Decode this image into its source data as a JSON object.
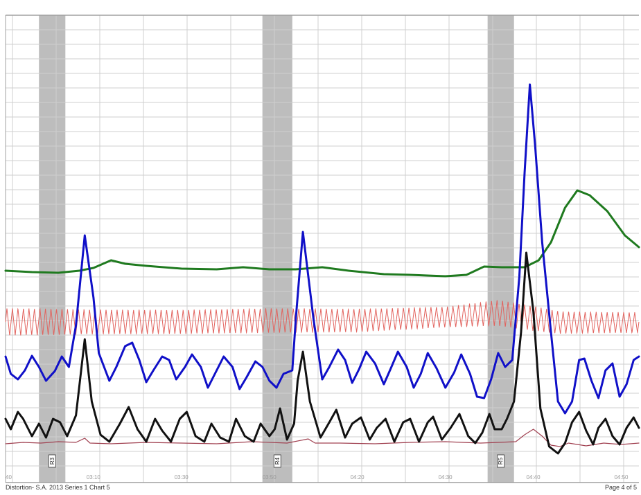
{
  "footer": {
    "left": "Distortion- S.A. 2013 Series 1 Chart 5",
    "right": "Page 4 of 5"
  },
  "chart_data": {
    "type": "line",
    "title": "",
    "xlabel": "",
    "ylabel": "",
    "x_unit": "seconds",
    "xlim": [
      3600,
      3960
    ],
    "grid": true,
    "tick_labels": [
      {
        "x": 3600,
        "label": "40"
      },
      {
        "x": 3646,
        "label": "03:10"
      },
      {
        "x": 3696,
        "label": "03:30"
      },
      {
        "x": 3746,
        "label": "03:50"
      },
      {
        "x": 3796,
        "label": "04:20"
      },
      {
        "x": 3846,
        "label": "04:30"
      },
      {
        "x": 3896,
        "label": "04:40"
      },
      {
        "x": 3946,
        "label": "04:50"
      }
    ],
    "question_bands": [
      {
        "start": 3619,
        "end": 3634,
        "label": "R3"
      },
      {
        "start": 3746,
        "end": 3763,
        "label": "R4"
      },
      {
        "start": 3874,
        "end": 3889,
        "label": "R5"
      }
    ],
    "colors": {
      "band": "#bdbdbd",
      "grid": "#cfcfcf",
      "frame": "#a0a0a0",
      "electrodermal": "#1f7a1f",
      "cardio": "#e2635e",
      "upper_respiration": "#1010c8",
      "lower_respiration": "#111111",
      "activity": "#a04050"
    },
    "series": [
      {
        "key": "electrodermal",
        "points": [
          [
            3600,
            391
          ],
          [
            3615,
            393
          ],
          [
            3630,
            394
          ],
          [
            3642,
            391
          ],
          [
            3650,
            387
          ],
          [
            3660,
            376
          ],
          [
            3668,
            381
          ],
          [
            3680,
            384
          ],
          [
            3700,
            388
          ],
          [
            3720,
            389
          ],
          [
            3735,
            386
          ],
          [
            3750,
            389
          ],
          [
            3765,
            389
          ],
          [
            3780,
            386
          ],
          [
            3795,
            391
          ],
          [
            3815,
            396
          ],
          [
            3830,
            397
          ],
          [
            3850,
            399
          ],
          [
            3862,
            397
          ],
          [
            3872,
            385
          ],
          [
            3882,
            386
          ],
          [
            3895,
            386
          ],
          [
            3903,
            376
          ],
          [
            3910,
            350
          ],
          [
            3918,
            300
          ],
          [
            3925,
            275
          ],
          [
            3932,
            282
          ],
          [
            3942,
            305
          ],
          [
            3952,
            340
          ],
          [
            3960,
            357
          ]
        ]
      },
      {
        "key": "cardio",
        "center": [
          [
            3600,
            465
          ],
          [
            3640,
            465
          ],
          [
            3700,
            465
          ],
          [
            3750,
            463
          ],
          [
            3800,
            463
          ],
          [
            3850,
            458
          ],
          [
            3880,
            452
          ],
          [
            3895,
            458
          ],
          [
            3915,
            466
          ],
          [
            3960,
            466
          ]
        ],
        "amp": [
          [
            3600,
            40
          ],
          [
            3630,
            38
          ],
          [
            3650,
            36
          ],
          [
            3700,
            35
          ],
          [
            3750,
            36
          ],
          [
            3800,
            34
          ],
          [
            3850,
            30
          ],
          [
            3880,
            38
          ],
          [
            3900,
            36
          ],
          [
            3920,
            32
          ],
          [
            3960,
            30
          ]
        ],
        "period": 3.13
      },
      {
        "key": "upper_respiration",
        "points": [
          [
            3600,
            515
          ],
          [
            3603,
            540
          ],
          [
            3607,
            548
          ],
          [
            3611,
            535
          ],
          [
            3615,
            514
          ],
          [
            3619,
            530
          ],
          [
            3623,
            550
          ],
          [
            3628,
            536
          ],
          [
            3632,
            515
          ],
          [
            3636,
            530
          ],
          [
            3640,
            470
          ],
          [
            3645,
            340
          ],
          [
            3650,
            430
          ],
          [
            3653,
            510
          ],
          [
            3659,
            550
          ],
          [
            3663,
            530
          ],
          [
            3668,
            500
          ],
          [
            3672,
            495
          ],
          [
            3676,
            520
          ],
          [
            3680,
            552
          ],
          [
            3684,
            535
          ],
          [
            3689,
            515
          ],
          [
            3693,
            520
          ],
          [
            3697,
            548
          ],
          [
            3702,
            530
          ],
          [
            3706,
            512
          ],
          [
            3711,
            530
          ],
          [
            3715,
            560
          ],
          [
            3719,
            540
          ],
          [
            3724,
            515
          ],
          [
            3729,
            530
          ],
          [
            3733,
            562
          ],
          [
            3737,
            545
          ],
          [
            3742,
            522
          ],
          [
            3746,
            530
          ],
          [
            3750,
            550
          ],
          [
            3754,
            560
          ],
          [
            3758,
            540
          ],
          [
            3763,
            535
          ],
          [
            3765,
            460
          ],
          [
            3769,
            335
          ],
          [
            3775,
            460
          ],
          [
            3780,
            548
          ],
          [
            3784,
            530
          ],
          [
            3789,
            505
          ],
          [
            3793,
            520
          ],
          [
            3797,
            553
          ],
          [
            3801,
            533
          ],
          [
            3805,
            508
          ],
          [
            3810,
            525
          ],
          [
            3815,
            555
          ],
          [
            3819,
            532
          ],
          [
            3823,
            508
          ],
          [
            3828,
            530
          ],
          [
            3832,
            560
          ],
          [
            3836,
            540
          ],
          [
            3840,
            510
          ],
          [
            3845,
            532
          ],
          [
            3850,
            560
          ],
          [
            3855,
            538
          ],
          [
            3859,
            512
          ],
          [
            3864,
            540
          ],
          [
            3868,
            573
          ],
          [
            3872,
            575
          ],
          [
            3876,
            548
          ],
          [
            3880,
            510
          ],
          [
            3884,
            530
          ],
          [
            3888,
            520
          ],
          [
            3892,
            400
          ],
          [
            3895,
            250
          ],
          [
            3898,
            122
          ],
          [
            3901,
            210
          ],
          [
            3905,
            350
          ],
          [
            3910,
            480
          ],
          [
            3914,
            580
          ],
          [
            3918,
            597
          ],
          [
            3922,
            580
          ],
          [
            3926,
            520
          ],
          [
            3929,
            518
          ],
          [
            3933,
            550
          ],
          [
            3937,
            575
          ],
          [
            3941,
            535
          ],
          [
            3945,
            525
          ],
          [
            3949,
            573
          ],
          [
            3953,
            555
          ],
          [
            3957,
            520
          ],
          [
            3960,
            515
          ]
        ]
      },
      {
        "key": "lower_respiration",
        "points": [
          [
            3600,
            605
          ],
          [
            3603,
            620
          ],
          [
            3607,
            595
          ],
          [
            3610,
            605
          ],
          [
            3615,
            630
          ],
          [
            3619,
            612
          ],
          [
            3623,
            632
          ],
          [
            3627,
            605
          ],
          [
            3631,
            610
          ],
          [
            3635,
            630
          ],
          [
            3640,
            600
          ],
          [
            3645,
            490
          ],
          [
            3649,
            580
          ],
          [
            3654,
            628
          ],
          [
            3659,
            638
          ],
          [
            3665,
            612
          ],
          [
            3670,
            588
          ],
          [
            3675,
            620
          ],
          [
            3680,
            638
          ],
          [
            3685,
            605
          ],
          [
            3689,
            622
          ],
          [
            3694,
            638
          ],
          [
            3699,
            605
          ],
          [
            3703,
            595
          ],
          [
            3708,
            630
          ],
          [
            3713,
            638
          ],
          [
            3717,
            612
          ],
          [
            3722,
            632
          ],
          [
            3727,
            638
          ],
          [
            3731,
            605
          ],
          [
            3736,
            630
          ],
          [
            3741,
            638
          ],
          [
            3745,
            612
          ],
          [
            3750,
            630
          ],
          [
            3753,
            620
          ],
          [
            3756,
            590
          ],
          [
            3760,
            635
          ],
          [
            3764,
            612
          ],
          [
            3766,
            550
          ],
          [
            3769,
            508
          ],
          [
            3773,
            580
          ],
          [
            3779,
            632
          ],
          [
            3784,
            610
          ],
          [
            3788,
            592
          ],
          [
            3793,
            632
          ],
          [
            3797,
            612
          ],
          [
            3802,
            603
          ],
          [
            3807,
            635
          ],
          [
            3811,
            618
          ],
          [
            3816,
            605
          ],
          [
            3821,
            638
          ],
          [
            3826,
            610
          ],
          [
            3830,
            605
          ],
          [
            3835,
            638
          ],
          [
            3840,
            610
          ],
          [
            3843,
            602
          ],
          [
            3848,
            635
          ],
          [
            3853,
            618
          ],
          [
            3858,
            598
          ],
          [
            3863,
            630
          ],
          [
            3867,
            640
          ],
          [
            3871,
            625
          ],
          [
            3875,
            598
          ],
          [
            3878,
            620
          ],
          [
            3882,
            620
          ],
          [
            3885,
            605
          ],
          [
            3889,
            580
          ],
          [
            3893,
            480
          ],
          [
            3896,
            365
          ],
          [
            3900,
            450
          ],
          [
            3904,
            590
          ],
          [
            3909,
            645
          ],
          [
            3914,
            655
          ],
          [
            3918,
            640
          ],
          [
            3922,
            610
          ],
          [
            3926,
            595
          ],
          [
            3930,
            622
          ],
          [
            3934,
            642
          ],
          [
            3937,
            618
          ],
          [
            3941,
            605
          ],
          [
            3945,
            630
          ],
          [
            3949,
            642
          ],
          [
            3953,
            618
          ],
          [
            3957,
            603
          ],
          [
            3960,
            618
          ]
        ]
      },
      {
        "key": "activity",
        "points": [
          [
            3600,
            641
          ],
          [
            3610,
            639
          ],
          [
            3620,
            640
          ],
          [
            3630,
            638
          ],
          [
            3640,
            639
          ],
          [
            3645,
            633
          ],
          [
            3648,
            640
          ],
          [
            3660,
            641
          ],
          [
            3680,
            639
          ],
          [
            3700,
            640
          ],
          [
            3720,
            641
          ],
          [
            3740,
            638
          ],
          [
            3760,
            640
          ],
          [
            3772,
            634
          ],
          [
            3776,
            640
          ],
          [
            3790,
            640
          ],
          [
            3810,
            641
          ],
          [
            3830,
            639
          ],
          [
            3850,
            638
          ],
          [
            3870,
            640
          ],
          [
            3890,
            638
          ],
          [
            3895,
            628
          ],
          [
            3900,
            620
          ],
          [
            3905,
            630
          ],
          [
            3910,
            643
          ],
          [
            3915,
            645
          ],
          [
            3920,
            640
          ],
          [
            3930,
            644
          ],
          [
            3940,
            640
          ],
          [
            3950,
            642
          ],
          [
            3960,
            640
          ]
        ]
      }
    ]
  }
}
